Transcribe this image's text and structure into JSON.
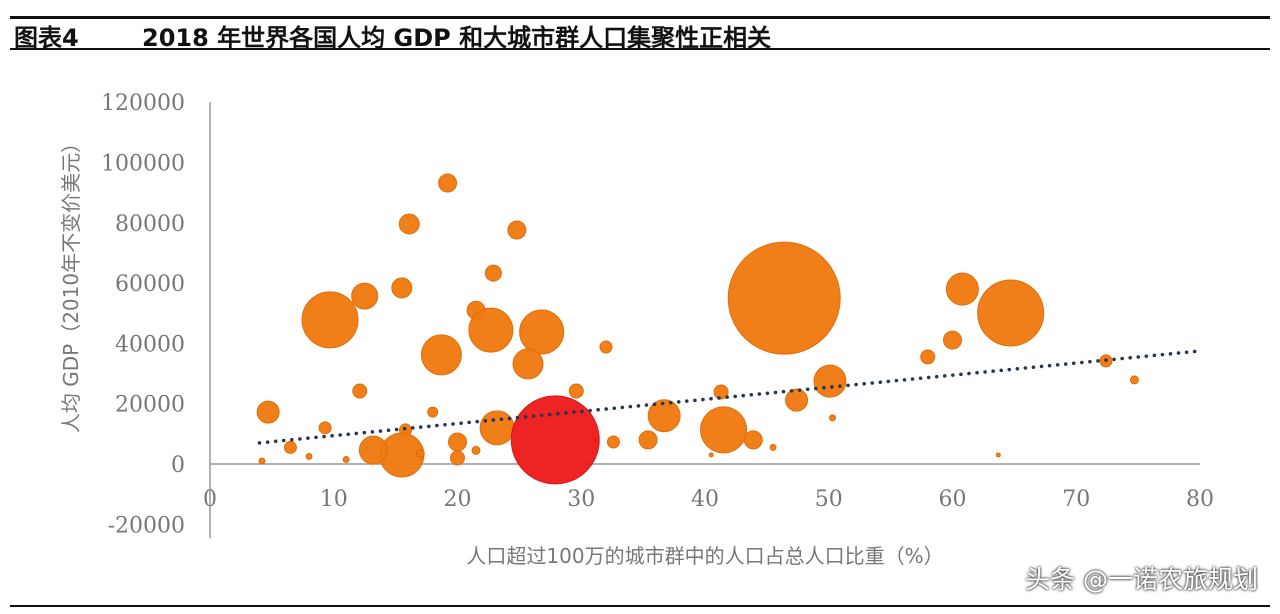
{
  "header": {
    "figure_number": "图表4",
    "title": "2018 年世界各国人均 GDP 和大城市群人口集聚性正相关"
  },
  "watermark": "头条 @一诺农旅规划",
  "colors": {
    "bubble": "#f07a12",
    "highlight": "#ee1d1d",
    "trend": "#2a3550",
    "axis": "#999999"
  },
  "chart_data": {
    "type": "scatter",
    "subtype": "bubble",
    "title": "",
    "xlabel": "人口超过100万的城市群中的人口占总人口比重（%）",
    "ylabel": "人均 GDP（2010年不变价美元）",
    "xlim": [
      0,
      80
    ],
    "ylim": [
      -20000,
      120000
    ],
    "xticks": [
      "0",
      "10",
      "20",
      "30",
      "40",
      "50",
      "60",
      "70",
      "80"
    ],
    "yticks": [
      "-20000",
      "0",
      "20000",
      "40000",
      "60000",
      "80000",
      "100000",
      "120000"
    ],
    "grid": false,
    "legend": "none",
    "trendline": {
      "style": "dotted",
      "type": "linear",
      "points": [
        [
          4,
          7000
        ],
        [
          80,
          37500
        ]
      ]
    },
    "points": [
      {
        "x": 9.7,
        "y": 47800,
        "size": 28
      },
      {
        "x": 12.5,
        "y": 55700,
        "size": 13
      },
      {
        "x": 15.5,
        "y": 58400,
        "size": 10
      },
      {
        "x": 16.1,
        "y": 79600,
        "size": 10
      },
      {
        "x": 19.2,
        "y": 93200,
        "size": 9
      },
      {
        "x": 24.8,
        "y": 77600,
        "size": 9
      },
      {
        "x": 22.9,
        "y": 63300,
        "size": 8
      },
      {
        "x": 21.5,
        "y": 51000,
        "size": 9
      },
      {
        "x": 22.7,
        "y": 44400,
        "size": 22
      },
      {
        "x": 26.8,
        "y": 43800,
        "size": 22
      },
      {
        "x": 25.7,
        "y": 33200,
        "size": 15
      },
      {
        "x": 18.7,
        "y": 36200,
        "size": 20
      },
      {
        "x": 12.1,
        "y": 24200,
        "size": 7
      },
      {
        "x": 4.7,
        "y": 17200,
        "size": 11
      },
      {
        "x": 9.3,
        "y": 12000,
        "size": 6
      },
      {
        "x": 18.0,
        "y": 17200,
        "size": 5
      },
      {
        "x": 15.8,
        "y": 11300,
        "size": 6
      },
      {
        "x": 15.5,
        "y": 3000,
        "size": 22
      },
      {
        "x": 13.2,
        "y": 4600,
        "size": 14
      },
      {
        "x": 20.0,
        "y": 7300,
        "size": 9
      },
      {
        "x": 20.0,
        "y": 2000,
        "size": 7
      },
      {
        "x": 23.2,
        "y": 12000,
        "size": 17
      },
      {
        "x": 29.6,
        "y": 24200,
        "size": 7
      },
      {
        "x": 32.0,
        "y": 38800,
        "size": 6
      },
      {
        "x": 32.6,
        "y": 7300,
        "size": 6
      },
      {
        "x": 35.4,
        "y": 8000,
        "size": 9
      },
      {
        "x": 36.7,
        "y": 16000,
        "size": 16
      },
      {
        "x": 41.5,
        "y": 11300,
        "size": 23
      },
      {
        "x": 43.9,
        "y": 8000,
        "size": 9
      },
      {
        "x": 41.3,
        "y": 23900,
        "size": 7
      },
      {
        "x": 46.4,
        "y": 55000,
        "size": 56
      },
      {
        "x": 47.4,
        "y": 21200,
        "size": 11
      },
      {
        "x": 50.1,
        "y": 27500,
        "size": 16
      },
      {
        "x": 50.3,
        "y": 15300,
        "size": 3
      },
      {
        "x": 58.0,
        "y": 35500,
        "size": 7
      },
      {
        "x": 60.0,
        "y": 41100,
        "size": 9
      },
      {
        "x": 60.8,
        "y": 58000,
        "size": 16
      },
      {
        "x": 64.7,
        "y": 50100,
        "size": 33
      },
      {
        "x": 72.4,
        "y": 34200,
        "size": 6
      },
      {
        "x": 74.7,
        "y": 27900,
        "size": 4
      },
      {
        "x": 63.7,
        "y": 3000,
        "size": 2
      },
      {
        "x": 6.5,
        "y": 5500,
        "size": 6
      },
      {
        "x": 8.0,
        "y": 2500,
        "size": 3
      },
      {
        "x": 4.2,
        "y": 1000,
        "size": 3
      },
      {
        "x": 11.0,
        "y": 1500,
        "size": 3
      },
      {
        "x": 17.0,
        "y": 3500,
        "size": 4
      },
      {
        "x": 21.5,
        "y": 4500,
        "size": 4
      },
      {
        "x": 31.0,
        "y": 8000,
        "size": 4
      },
      {
        "x": 45.5,
        "y": 5500,
        "size": 3
      },
      {
        "x": 40.5,
        "y": 3000,
        "size": 2
      },
      {
        "x": 27.9,
        "y": 8000,
        "size": 44,
        "highlight": true
      }
    ]
  }
}
